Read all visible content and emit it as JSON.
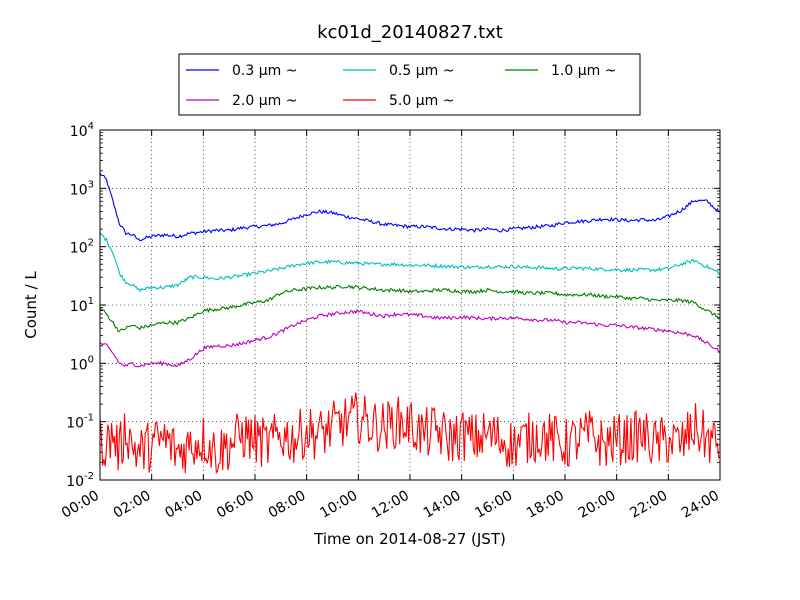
{
  "chart_data": {
    "type": "line",
    "title": "kc01d_20140827.txt",
    "xlabel": "Time on 2014-08-27 (JST)",
    "ylabel": "Count / L",
    "y_scale": "log",
    "grid": true,
    "legend_position": "top-center, outside plot",
    "xlim_hours": [
      0,
      24
    ],
    "ylim": [
      0.01,
      10000
    ],
    "x_ticks": [
      "00:00",
      "02:00",
      "04:00",
      "06:00",
      "08:00",
      "10:00",
      "12:00",
      "14:00",
      "16:00",
      "18:00",
      "20:00",
      "22:00",
      "24:00"
    ],
    "y_ticks": [
      {
        "base": "10",
        "exp": "-2",
        "value": 0.01
      },
      {
        "base": "10",
        "exp": "-1",
        "value": 0.1
      },
      {
        "base": "10",
        "exp": "0",
        "value": 1
      },
      {
        "base": "10",
        "exp": "1",
        "value": 10
      },
      {
        "base": "10",
        "exp": "2",
        "value": 100
      },
      {
        "base": "10",
        "exp": "3",
        "value": 1000
      },
      {
        "base": "10",
        "exp": "4",
        "value": 10000
      }
    ],
    "x_hours": [
      0,
      0.25,
      0.5,
      0.75,
      1,
      1.25,
      1.5,
      2,
      2.5,
      3,
      3.5,
      4,
      4.5,
      5,
      5.5,
      6,
      6.5,
      7,
      7.5,
      8,
      8.5,
      9,
      9.5,
      10,
      10.5,
      11,
      11.5,
      12,
      12.5,
      13,
      13.5,
      14,
      14.5,
      15,
      15.5,
      16,
      16.5,
      17,
      17.5,
      18,
      18.5,
      19,
      19.5,
      20,
      20.5,
      21,
      21.5,
      22,
      22.5,
      23,
      23.5,
      24
    ],
    "series": [
      {
        "name": "0.3 μm ~",
        "color": "#0000ff",
        "values": [
          1800,
          1400,
          600,
          250,
          170,
          160,
          130,
          150,
          160,
          150,
          170,
          180,
          190,
          190,
          210,
          220,
          230,
          250,
          300,
          360,
          400,
          380,
          330,
          300,
          270,
          240,
          230,
          220,
          220,
          210,
          200,
          200,
          190,
          200,
          190,
          200,
          210,
          220,
          230,
          260,
          270,
          280,
          300,
          290,
          280,
          290,
          280,
          330,
          420,
          620,
          600,
          380
        ]
      },
      {
        "name": "0.5 μm ~",
        "color": "#00bfbf",
        "values": [
          170,
          130,
          80,
          35,
          25,
          22,
          18,
          20,
          20,
          22,
          30,
          30,
          28,
          30,
          32,
          35,
          38,
          42,
          48,
          52,
          54,
          55,
          53,
          52,
          50,
          50,
          50,
          48,
          48,
          47,
          46,
          45,
          44,
          46,
          45,
          46,
          44,
          44,
          42,
          42,
          43,
          42,
          41,
          40,
          40,
          40,
          40,
          42,
          50,
          58,
          45,
          35
        ]
      },
      {
        "name": "1.0 μm ~",
        "color": "#008000",
        "values": [
          9,
          7,
          5,
          3.5,
          4,
          4.5,
          4,
          4.5,
          5,
          5,
          6,
          8,
          8.5,
          9,
          10,
          11,
          12,
          16,
          18,
          19,
          20,
          20,
          21,
          20,
          19,
          18,
          18,
          17,
          17,
          18,
          18,
          17,
          17,
          18,
          17,
          17,
          16,
          16,
          16,
          15,
          15,
          15,
          14,
          14,
          13,
          13,
          12,
          12,
          12,
          11,
          8,
          6
        ]
      },
      {
        "name": "2.0 μm ~",
        "color": "#bf00bf",
        "values": [
          2.2,
          2,
          1.5,
          1,
          0.9,
          1,
          0.9,
          1,
          1,
          0.9,
          1.2,
          1.8,
          2,
          2,
          2.2,
          2.5,
          2.8,
          3.5,
          4.5,
          5.5,
          6.5,
          7,
          7.5,
          7.8,
          7,
          6.5,
          7,
          6.8,
          6.5,
          6,
          6,
          6.2,
          6,
          5.8,
          6,
          6,
          5.8,
          5.5,
          5.5,
          5,
          5,
          4.8,
          4.5,
          4.5,
          4.2,
          4,
          3.8,
          3.6,
          3.3,
          3,
          2.2,
          1.6
        ]
      },
      {
        "name": "5.0 μm ~",
        "color": "#ff0000",
        "values": [
          0.05,
          0.04,
          0.06,
          0.03,
          0.08,
          0.04,
          0.03,
          0.04,
          0.05,
          0.03,
          0.04,
          0.05,
          0.03,
          0.04,
          0.06,
          0.05,
          0.04,
          0.06,
          0.05,
          0.07,
          0.06,
          0.08,
          0.1,
          0.12,
          0.09,
          0.08,
          0.1,
          0.09,
          0.06,
          0.07,
          0.05,
          0.06,
          0.05,
          0.06,
          0.05,
          0.04,
          0.05,
          0.06,
          0.05,
          0.04,
          0.05,
          0.06,
          0.04,
          0.05,
          0.05,
          0.06,
          0.04,
          0.05,
          0.04,
          0.08,
          0.05,
          0.04
        ]
      }
    ]
  }
}
